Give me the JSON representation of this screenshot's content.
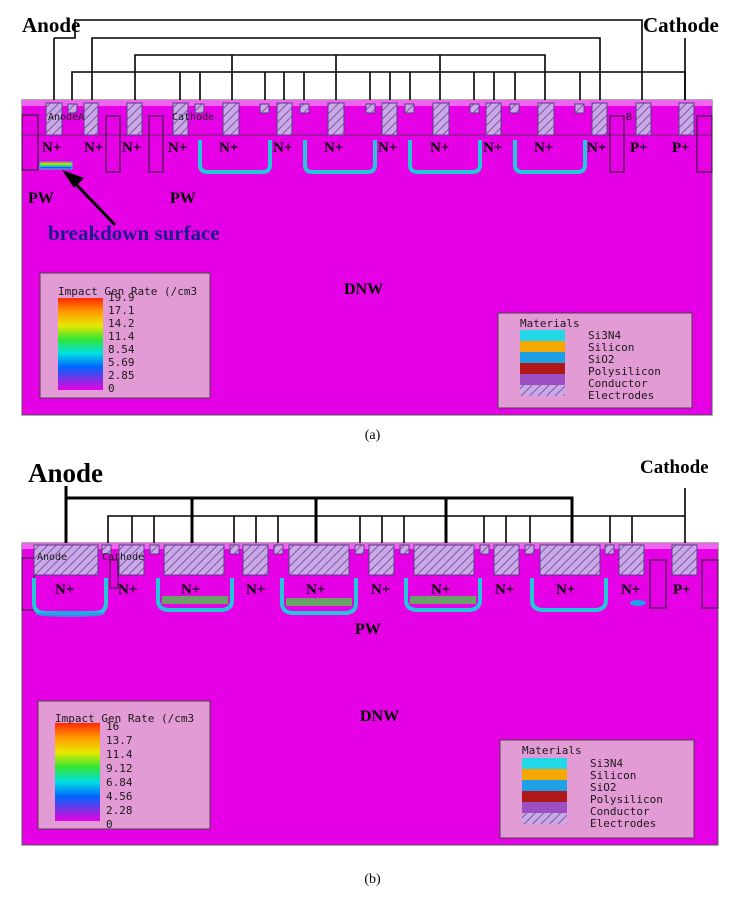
{
  "panel_a": {
    "caption": "(a)",
    "anode_label": "Anode",
    "cathode_label": "Cathode",
    "n_plus": "N+",
    "p_plus": "P+",
    "pw": "PW",
    "dnw": "DNW",
    "breakdown": "breakdown surface",
    "in_anode": "AnodeA",
    "in_cathode": "Cathode",
    "in_b": "B",
    "legend_title": "Impact Gen Rate (/cm3",
    "legend_ticks": [
      "19.9",
      "17.1",
      "14.2",
      "11.4",
      "8.54",
      "5.69",
      "2.85",
      "0"
    ]
  },
  "panel_b": {
    "caption": "(b)",
    "anode_label": "Anode",
    "cathode_label": "Cathode",
    "n_plus": "N+",
    "p_plus": "P+",
    "pw": "PW",
    "dnw": "DNW",
    "in_anode": "Anode",
    "in_cathode": "Cathode",
    "legend_title": "Impact Gen Rate (/cm3",
    "legend_ticks": [
      "16",
      "13.7",
      "11.4",
      "9.12",
      "6.84",
      "4.56",
      "2.28",
      "0"
    ]
  },
  "materials": {
    "title": "Materials",
    "items": [
      {
        "name": "Si3N4",
        "color": "#22d8e8"
      },
      {
        "name": "Silicon",
        "color": "#f5a800"
      },
      {
        "name": "SiO2",
        "color": "#1ea0e6"
      },
      {
        "name": "Polysilicon",
        "color": "#b01818"
      },
      {
        "name": "Conductor",
        "color": "#9b4fc2"
      },
      {
        "name": "Electrodes",
        "color": "#c9a9e6"
      }
    ]
  },
  "colors": {
    "silicon_bg": "#e600e6",
    "legend_bg": "#e39bd6"
  }
}
